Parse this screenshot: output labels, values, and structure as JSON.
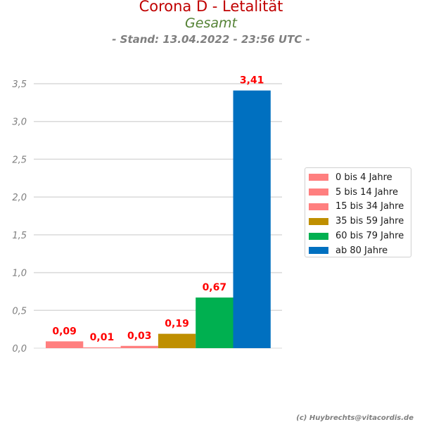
{
  "header": {
    "title": "Corona D - Letalität",
    "subtitle": "Gesamt",
    "stand": "- Stand: 13.04.2022 - 23:56 UTC -"
  },
  "footer": {
    "credit": "(c) Huybrechts@vitacordis.de"
  },
  "chart_data": {
    "type": "bar",
    "ylim": [
      0,
      3.5
    ],
    "yticks": [
      "0,0",
      "0,5",
      "1,0",
      "1,5",
      "2,0",
      "2,5",
      "3,0",
      "3,5"
    ],
    "ytick_values": [
      0,
      0.5,
      1.0,
      1.5,
      2.0,
      2.5,
      3.0,
      3.5
    ],
    "grid": true,
    "legend_position": "right",
    "series": [
      {
        "name": "0 bis 4 Jahre",
        "value": 0.09,
        "label": "0,09",
        "color": "#ff7f7f"
      },
      {
        "name": "5 bis 14 Jahre",
        "value": 0.01,
        "label": "0,01",
        "color": "#ff7f7f"
      },
      {
        "name": "15 bis 34 Jahre",
        "value": 0.03,
        "label": "0,03",
        "color": "#ff7f7f"
      },
      {
        "name": "35 bis 59 Jahre",
        "value": 0.19,
        "label": "0,19",
        "color": "#bf8f00"
      },
      {
        "name": "60 bis 79 Jahre",
        "value": 0.67,
        "label": "0,67",
        "color": "#00b050"
      },
      {
        "name": "ab 80 Jahre",
        "value": 3.41,
        "label": "3,41",
        "color": "#0070c0"
      }
    ],
    "label_color": "#ff0000"
  }
}
